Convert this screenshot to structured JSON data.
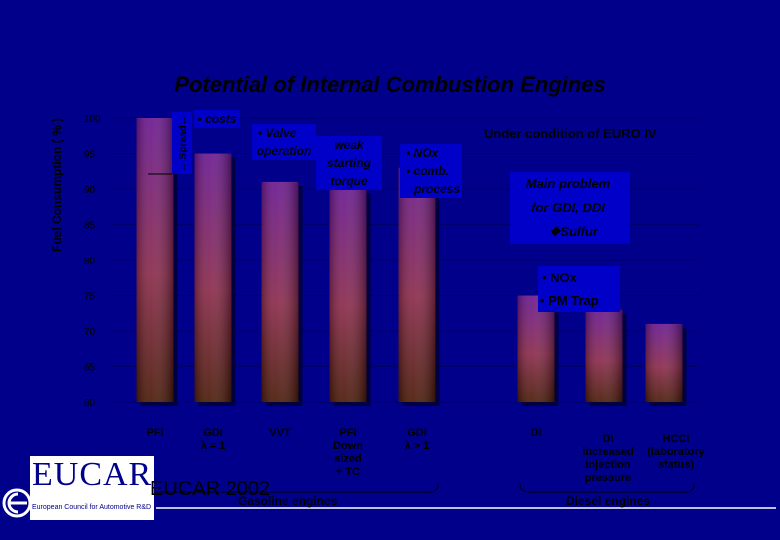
{
  "title": "Potential of Internal Combustion Engines",
  "ylabel": "Fuel Consumption ( % )",
  "condition_note": "Under condition of EURO IV",
  "main_problem": [
    "Main problem",
    "for GDI, DDI"
  ],
  "problem_items": [
    "❖Sulfur",
    "• NOx",
    "• PM Trap"
  ],
  "spread_label": "↔ Spread↔",
  "callouts": [
    {
      "lines": [
        "• costs"
      ]
    },
    {
      "lines": [
        "• Valve",
        "operation"
      ]
    },
    {
      "lines": [
        "weak",
        "starting",
        "torque"
      ]
    },
    {
      "lines": [
        "• NOx",
        "• comb.",
        "process"
      ]
    }
  ],
  "groups": [
    "Gasoline engines",
    "Diesel engines"
  ],
  "logo": {
    "word": "EUCAR",
    "subtitle": "European Council for Automotive R&D",
    "footer": "EUCAR 2002"
  },
  "colors": {
    "background": "#00008a",
    "bar_top": "#6a1890",
    "bar_mid": "#8a2a4a",
    "bar_bottom": "#4a1a08"
  },
  "chart_data": {
    "type": "bar",
    "categories": [
      "PFI",
      "GDI\nλ = 1",
      "VVT",
      "PFI\nDown\nsized\n+ TC",
      "GDI\nλ > 1",
      "DI",
      "DI\nincreased\ninjection\npressure",
      "HCCI\n(laboratory\nstatus)"
    ],
    "values": [
      100,
      95,
      91,
      90,
      93,
      75,
      73,
      71
    ],
    "ylim": [
      60,
      100
    ],
    "yticks": [
      60,
      65,
      70,
      75,
      80,
      85,
      90,
      95,
      100
    ],
    "grid": true
  }
}
